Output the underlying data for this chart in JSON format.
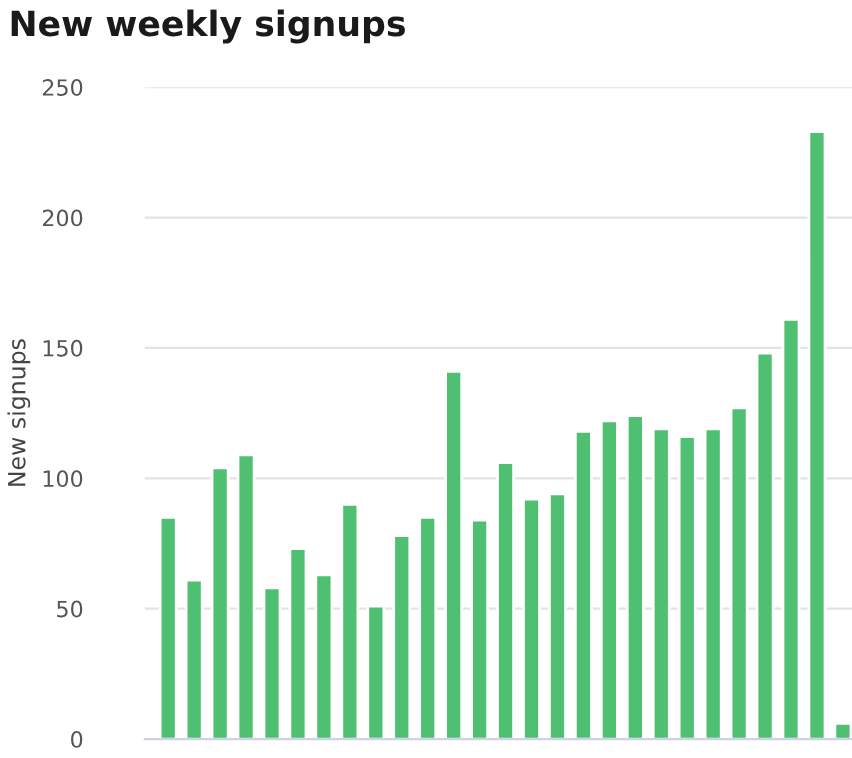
{
  "chart_data": {
    "type": "bar",
    "title": "New weekly signups",
    "ylabel": "New signups",
    "categories": [
      null,
      null,
      null,
      null,
      null,
      null,
      null,
      null,
      null,
      null,
      null,
      null,
      null,
      null,
      null,
      null,
      null,
      null,
      null,
      null,
      null,
      null,
      null,
      null,
      null,
      null,
      null
    ],
    "values": [
      85,
      61,
      104,
      109,
      58,
      73,
      63,
      90,
      51,
      78,
      85,
      141,
      84,
      106,
      92,
      94,
      118,
      122,
      124,
      119,
      116,
      119,
      127,
      148,
      161,
      233,
      6
    ],
    "color": "#4fbf72",
    "ylim": [
      0,
      250
    ],
    "yticks": [
      0,
      50,
      100,
      150,
      200,
      250
    ],
    "grid": "y"
  }
}
